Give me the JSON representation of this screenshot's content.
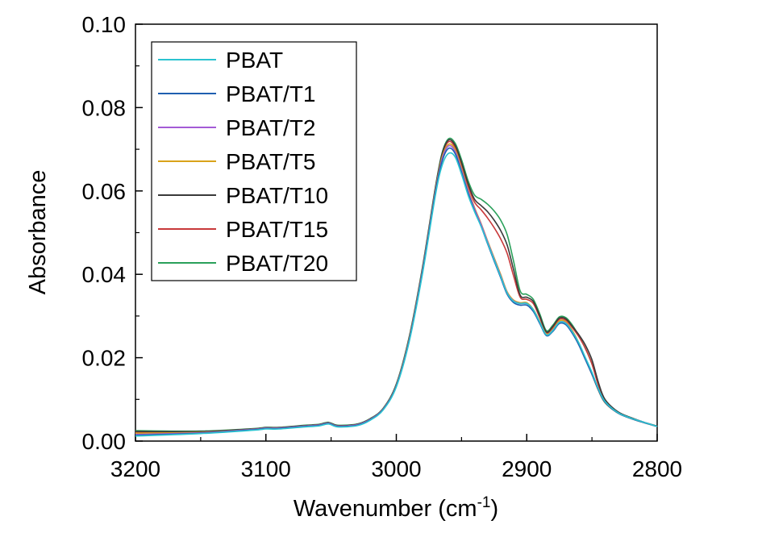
{
  "chart_data": {
    "type": "line",
    "title": "",
    "xlabel": "Wavenumber (cm",
    "xlabel_sup": "-1",
    "xlabel_end": ")",
    "ylabel": "Absorbance",
    "xlim": [
      3200,
      2800
    ],
    "ylim": [
      0.0,
      0.1
    ],
    "x_ticks": [
      3200,
      3100,
      3000,
      2900,
      2800
    ],
    "x_tick_labels": [
      "3200",
      "3100",
      "3000",
      "2900",
      "2800"
    ],
    "y_ticks": [
      0.0,
      0.02,
      0.04,
      0.06,
      0.08,
      0.1
    ],
    "y_tick_labels": [
      "0.00",
      "0.02",
      "0.04",
      "0.06",
      "0.08",
      "0.10"
    ],
    "legend_position": "top-left",
    "x": [
      3200,
      3150,
      3110,
      3100,
      3090,
      3070,
      3060,
      3052,
      3045,
      3030,
      3020,
      3010,
      3000,
      2990,
      2980,
      2970,
      2965,
      2960,
      2955,
      2950,
      2945,
      2940,
      2935,
      2930,
      2925,
      2920,
      2915,
      2910,
      2905,
      2900,
      2895,
      2890,
      2885,
      2880,
      2875,
      2870,
      2865,
      2860,
      2855,
      2850,
      2845,
      2840,
      2830,
      2820,
      2810,
      2800
    ],
    "series": [
      {
        "name": "PBAT",
        "color": "#2bc3d0",
        "values": [
          0.0012,
          0.0018,
          0.0026,
          0.0029,
          0.0029,
          0.0034,
          0.0036,
          0.0041,
          0.0034,
          0.0037,
          0.005,
          0.0075,
          0.013,
          0.024,
          0.04,
          0.059,
          0.066,
          0.069,
          0.0682,
          0.064,
          0.059,
          0.055,
          0.0515,
          0.0475,
          0.0435,
          0.0395,
          0.0355,
          0.0335,
          0.033,
          0.033,
          0.0315,
          0.0285,
          0.0255,
          0.0265,
          0.0285,
          0.0282,
          0.0262,
          0.0235,
          0.02,
          0.0165,
          0.0125,
          0.0095,
          0.0068,
          0.0055,
          0.0045,
          0.0035
        ]
      },
      {
        "name": "PBAT/T1",
        "color": "#1f5fb0",
        "values": [
          0.0014,
          0.0019,
          0.0027,
          0.003,
          0.003,
          0.0035,
          0.0037,
          0.0042,
          0.0035,
          0.0038,
          0.0051,
          0.0076,
          0.0132,
          0.0243,
          0.0405,
          0.0597,
          0.067,
          0.0702,
          0.069,
          0.0645,
          0.0595,
          0.0552,
          0.0515,
          0.0473,
          0.0432,
          0.0392,
          0.0352,
          0.0332,
          0.0326,
          0.0326,
          0.0311,
          0.0282,
          0.0253,
          0.0263,
          0.0282,
          0.0279,
          0.0258,
          0.023,
          0.0195,
          0.016,
          0.0122,
          0.0093,
          0.0067,
          0.0054,
          0.0044,
          0.0035
        ]
      },
      {
        "name": "PBAT/T2",
        "color": "#a45bd6",
        "values": [
          0.0016,
          0.002,
          0.0028,
          0.0031,
          0.0031,
          0.0036,
          0.0038,
          0.0043,
          0.0036,
          0.0039,
          0.0052,
          0.0077,
          0.0133,
          0.0245,
          0.0408,
          0.06,
          0.0675,
          0.0708,
          0.0695,
          0.065,
          0.06,
          0.0557,
          0.052,
          0.0478,
          0.0437,
          0.0397,
          0.0356,
          0.0336,
          0.033,
          0.033,
          0.0314,
          0.0285,
          0.0255,
          0.0266,
          0.0285,
          0.0283,
          0.0262,
          0.0233,
          0.0198,
          0.0163,
          0.0123,
          0.0094,
          0.0068,
          0.0055,
          0.0045,
          0.0035
        ]
      },
      {
        "name": "PBAT/T5",
        "color": "#d9a31a",
        "values": [
          0.0019,
          0.0021,
          0.0028,
          0.0031,
          0.0031,
          0.0036,
          0.0038,
          0.0043,
          0.0036,
          0.0039,
          0.0052,
          0.0077,
          0.0134,
          0.0247,
          0.041,
          0.0603,
          0.068,
          0.0712,
          0.07,
          0.0655,
          0.0603,
          0.056,
          0.0522,
          0.048,
          0.044,
          0.04,
          0.0358,
          0.0338,
          0.0332,
          0.0332,
          0.0316,
          0.0287,
          0.0257,
          0.0268,
          0.0288,
          0.0286,
          0.0265,
          0.0235,
          0.0197,
          0.016,
          0.0121,
          0.0092,
          0.0067,
          0.0054,
          0.0044,
          0.0035
        ]
      },
      {
        "name": "PBAT/T10",
        "color": "#3a3a3a",
        "values": [
          0.0023,
          0.0023,
          0.0029,
          0.0032,
          0.0032,
          0.0037,
          0.0039,
          0.0044,
          0.0037,
          0.004,
          0.0053,
          0.0078,
          0.0136,
          0.025,
          0.0414,
          0.0608,
          0.0688,
          0.0722,
          0.071,
          0.0668,
          0.0618,
          0.058,
          0.0565,
          0.055,
          0.053,
          0.0505,
          0.047,
          0.041,
          0.035,
          0.0345,
          0.0335,
          0.03,
          0.0262,
          0.0275,
          0.0295,
          0.0293,
          0.0275,
          0.0255,
          0.023,
          0.0195,
          0.014,
          0.01,
          0.007,
          0.0056,
          0.0045,
          0.0036
        ]
      },
      {
        "name": "PBAT/T15",
        "color": "#c8393a",
        "values": [
          0.0021,
          0.0022,
          0.0029,
          0.0032,
          0.0032,
          0.0037,
          0.0039,
          0.0044,
          0.0037,
          0.004,
          0.0053,
          0.0078,
          0.0135,
          0.0249,
          0.0412,
          0.0606,
          0.0685,
          0.0718,
          0.0705,
          0.0662,
          0.0612,
          0.0573,
          0.0555,
          0.0535,
          0.0512,
          0.0485,
          0.045,
          0.0395,
          0.0345,
          0.034,
          0.033,
          0.0296,
          0.026,
          0.0272,
          0.0292,
          0.029,
          0.0272,
          0.025,
          0.0222,
          0.0185,
          0.0133,
          0.0097,
          0.0069,
          0.0055,
          0.0045,
          0.0035
        ]
      },
      {
        "name": "PBAT/T20",
        "color": "#2aa05a",
        "values": [
          0.0025,
          0.0024,
          0.003,
          0.0033,
          0.0033,
          0.0038,
          0.004,
          0.0045,
          0.0038,
          0.0041,
          0.0054,
          0.0079,
          0.0137,
          0.0252,
          0.0416,
          0.061,
          0.069,
          0.0725,
          0.0715,
          0.0675,
          0.0625,
          0.059,
          0.058,
          0.0568,
          0.0552,
          0.053,
          0.0495,
          0.043,
          0.036,
          0.0352,
          0.034,
          0.0305,
          0.0265,
          0.0278,
          0.0298,
          0.0296,
          0.0278,
          0.0252,
          0.0222,
          0.0185,
          0.0135,
          0.0098,
          0.007,
          0.0056,
          0.0045,
          0.0036
        ]
      }
    ]
  }
}
